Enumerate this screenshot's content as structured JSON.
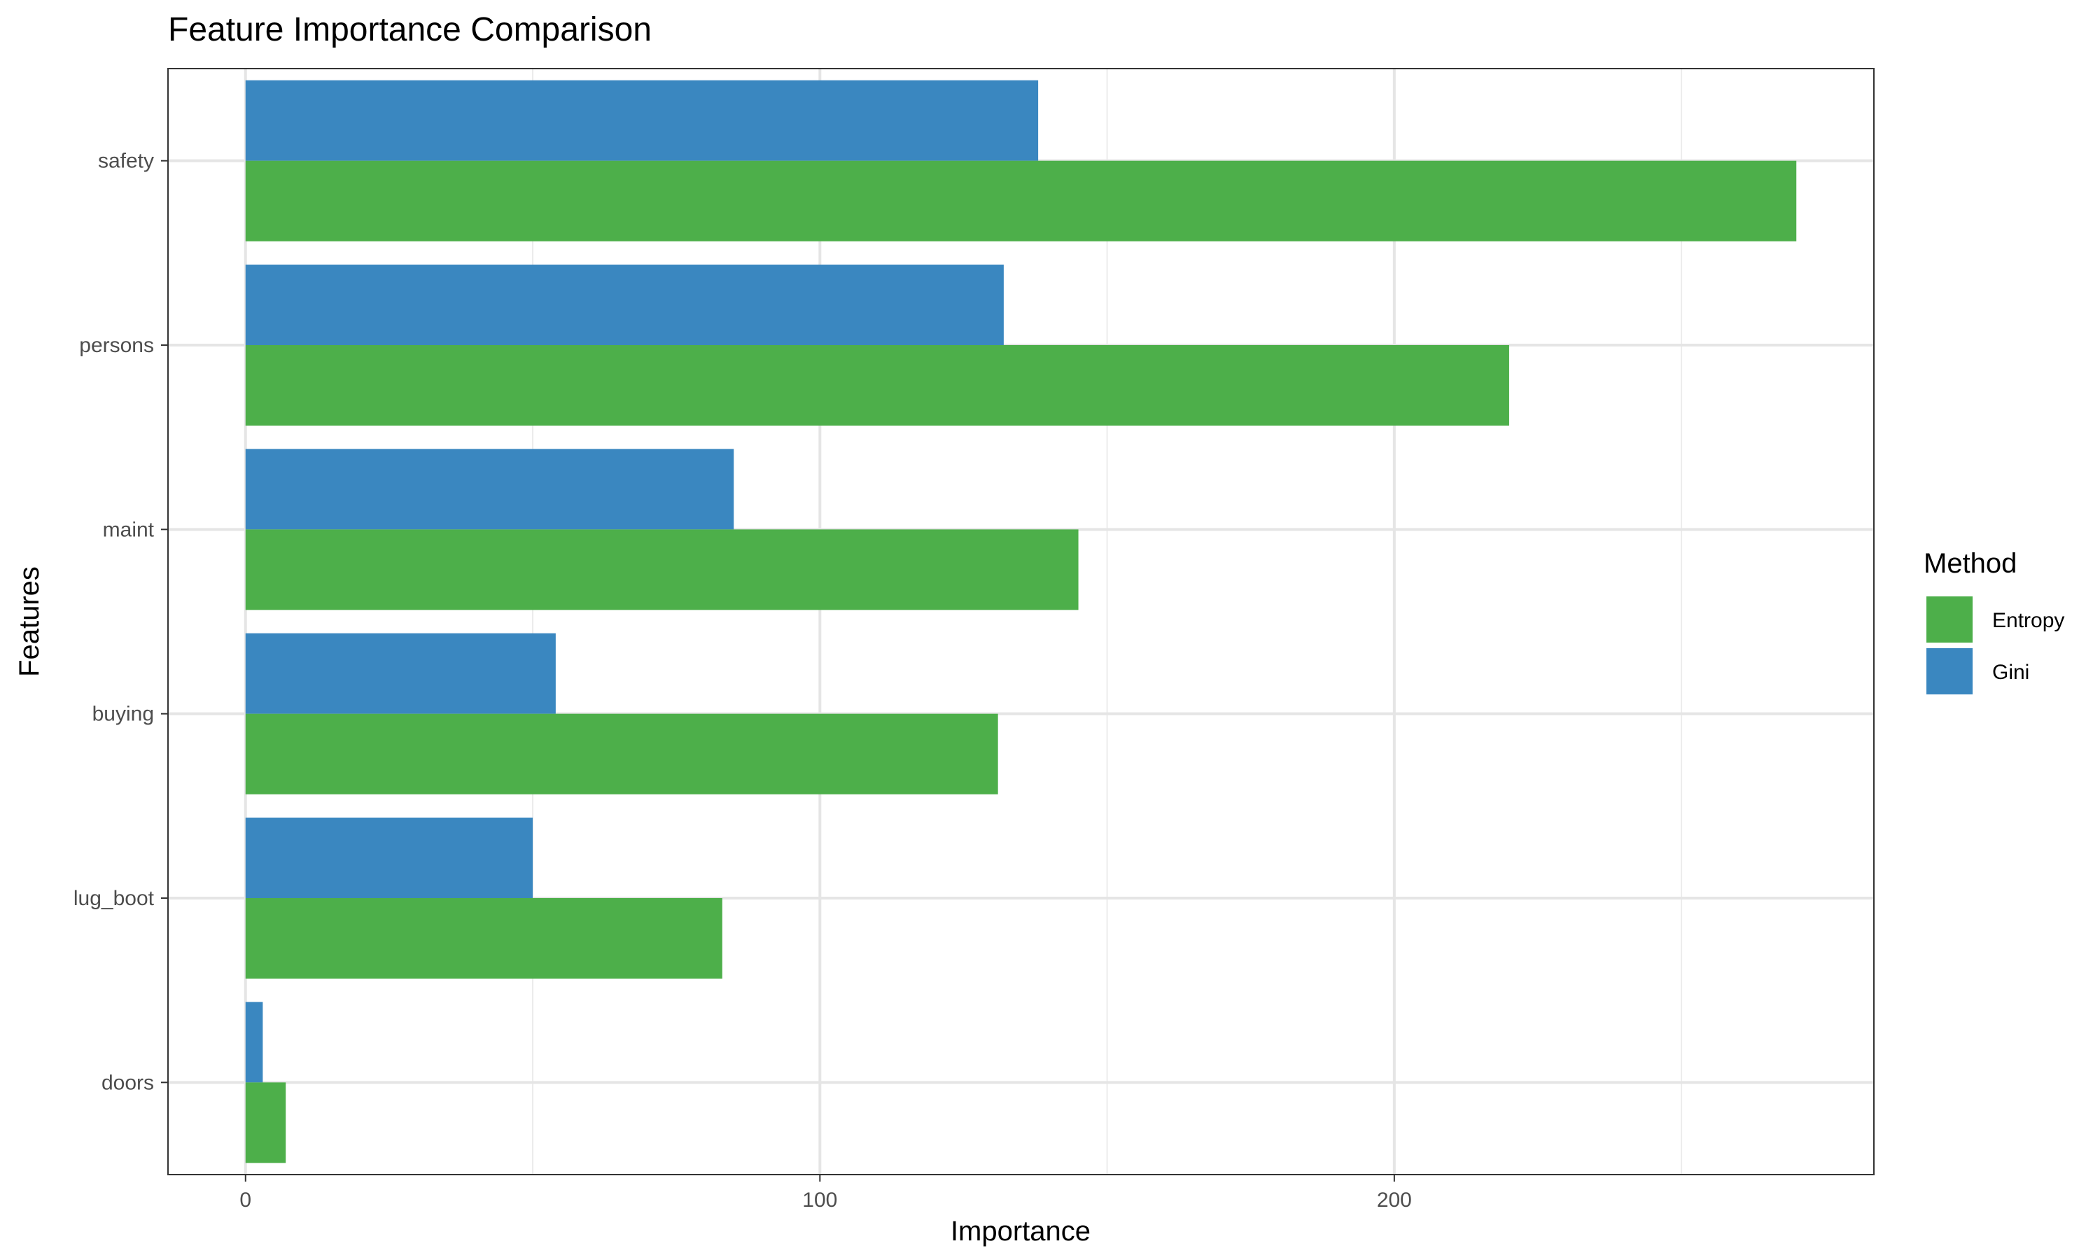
{
  "chart_data": {
    "type": "bar",
    "orientation": "horizontal",
    "title": "Feature Importance Comparison",
    "xlabel": "Importance",
    "ylabel": "Features",
    "categories": [
      "safety",
      "persons",
      "maint",
      "buying",
      "lug_boot",
      "doors"
    ],
    "series": [
      {
        "name": "Gini",
        "color": "#3a87c0",
        "values": [
          138,
          132,
          85,
          54,
          50,
          3
        ]
      },
      {
        "name": "Entropy",
        "color": "#4daf4a",
        "values": [
          270,
          220,
          145,
          131,
          83,
          7
        ]
      }
    ],
    "xlim": [
      -13.5,
      283.5
    ],
    "xticks": [
      0,
      100,
      200
    ],
    "grid": true,
    "legend": {
      "title": "Method",
      "position": "right",
      "entries": [
        "Entropy",
        "Gini"
      ]
    }
  }
}
